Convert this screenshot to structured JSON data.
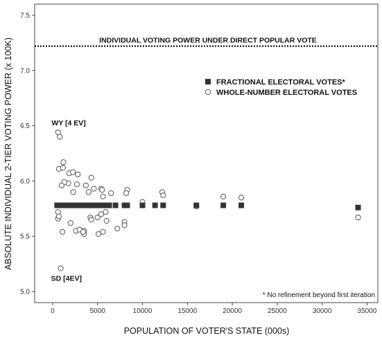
{
  "chart_data": {
    "type": "scatter",
    "xlabel": "POPULATION OF VOTER'S STATE (000s)",
    "ylabel": "ABSOLUTE INDIVIDUAL 2-TIER VOTING POWER (x 100K)",
    "xlim": [
      -2000,
      36200
    ],
    "ylim": [
      4.9,
      7.6
    ],
    "x_ticks": [
      0,
      5000,
      10000,
      15000,
      20000,
      25000,
      30000,
      35000
    ],
    "y_ticks": [
      5.0,
      5.5,
      6.0,
      6.5,
      7.0,
      7.5
    ],
    "grid": false,
    "reference_line": {
      "label": "INDIVIDUAL VOTING POWER UNDER DIRECT POPULAR VOTE",
      "y": 7.22,
      "style": "dotted"
    },
    "annotations": [
      {
        "text": "WY [4 EV]",
        "x": 500,
        "y": 6.44
      },
      {
        "text": "SD [4EV]",
        "x": 750,
        "y": 5.21
      }
    ],
    "note": "* No refinement beyond first iteration",
    "legend_position": "upper-right",
    "series": [
      {
        "name": "FRACTIONAL ELECTORAL VOTES*",
        "marker": "filled-square",
        "color": "#333333",
        "points": [
          [
            500,
            5.78
          ],
          [
            700,
            5.78
          ],
          [
            900,
            5.78
          ],
          [
            1100,
            5.78
          ],
          [
            1300,
            5.78
          ],
          [
            1500,
            5.78
          ],
          [
            1700,
            5.78
          ],
          [
            1900,
            5.78
          ],
          [
            2100,
            5.78
          ],
          [
            2300,
            5.78
          ],
          [
            2500,
            5.78
          ],
          [
            2700,
            5.78
          ],
          [
            2900,
            5.78
          ],
          [
            3100,
            5.78
          ],
          [
            3300,
            5.78
          ],
          [
            3500,
            5.78
          ],
          [
            3700,
            5.78
          ],
          [
            3900,
            5.78
          ],
          [
            4100,
            5.78
          ],
          [
            4300,
            5.78
          ],
          [
            4500,
            5.78
          ],
          [
            4700,
            5.78
          ],
          [
            4900,
            5.78
          ],
          [
            5100,
            5.78
          ],
          [
            5300,
            5.78
          ],
          [
            5500,
            5.78
          ],
          [
            5700,
            5.78
          ],
          [
            5900,
            5.78
          ],
          [
            6100,
            5.78
          ],
          [
            6300,
            5.78
          ],
          [
            7000,
            5.78
          ],
          [
            8000,
            5.78
          ],
          [
            8300,
            5.78
          ],
          [
            10000,
            5.78
          ],
          [
            11400,
            5.78
          ],
          [
            12300,
            5.78
          ],
          [
            16000,
            5.78
          ],
          [
            19000,
            5.78
          ],
          [
            21000,
            5.78
          ],
          [
            34000,
            5.76
          ]
        ]
      },
      {
        "name": "WHOLE-NUMBER ELECTORAL VOTES",
        "marker": "hollow-circle",
        "color": "#555555",
        "points": [
          [
            600,
            6.44
          ],
          [
            800,
            6.4
          ],
          [
            1200,
            6.17
          ],
          [
            700,
            6.11
          ],
          [
            1150,
            6.12
          ],
          [
            1850,
            6.07
          ],
          [
            2250,
            6.08
          ],
          [
            2800,
            6.06
          ],
          [
            1750,
            5.98
          ],
          [
            1300,
            5.99
          ],
          [
            1000,
            5.96
          ],
          [
            4300,
            6.03
          ],
          [
            3700,
            5.96
          ],
          [
            4600,
            5.93
          ],
          [
            5400,
            5.93
          ],
          [
            6500,
            5.89
          ],
          [
            5600,
            5.86
          ],
          [
            5500,
            5.92
          ],
          [
            4000,
            5.9
          ],
          [
            2300,
            5.9
          ],
          [
            2700,
            5.97
          ],
          [
            8300,
            5.92
          ],
          [
            8200,
            5.89
          ],
          [
            12200,
            5.9
          ],
          [
            12300,
            5.87
          ],
          [
            19000,
            5.86
          ],
          [
            21000,
            5.85
          ],
          [
            10000,
            5.81
          ],
          [
            16000,
            5.77
          ],
          [
            600,
            5.72
          ],
          [
            600,
            5.66
          ],
          [
            700,
            5.68
          ],
          [
            1100,
            5.54
          ],
          [
            2000,
            5.62
          ],
          [
            2600,
            5.55
          ],
          [
            3000,
            5.56
          ],
          [
            3500,
            5.55
          ],
          [
            3500,
            5.52
          ],
          [
            3400,
            5.54
          ],
          [
            4200,
            5.67
          ],
          [
            4300,
            5.65
          ],
          [
            5000,
            5.67
          ],
          [
            5600,
            5.54
          ],
          [
            5100,
            5.52
          ],
          [
            5900,
            5.72
          ],
          [
            6000,
            5.64
          ],
          [
            7200,
            5.57
          ],
          [
            8000,
            5.63
          ],
          [
            8000,
            5.6
          ],
          [
            5400,
            5.7
          ],
          [
            34000,
            5.67
          ],
          [
            900,
            5.21
          ]
        ]
      }
    ]
  }
}
